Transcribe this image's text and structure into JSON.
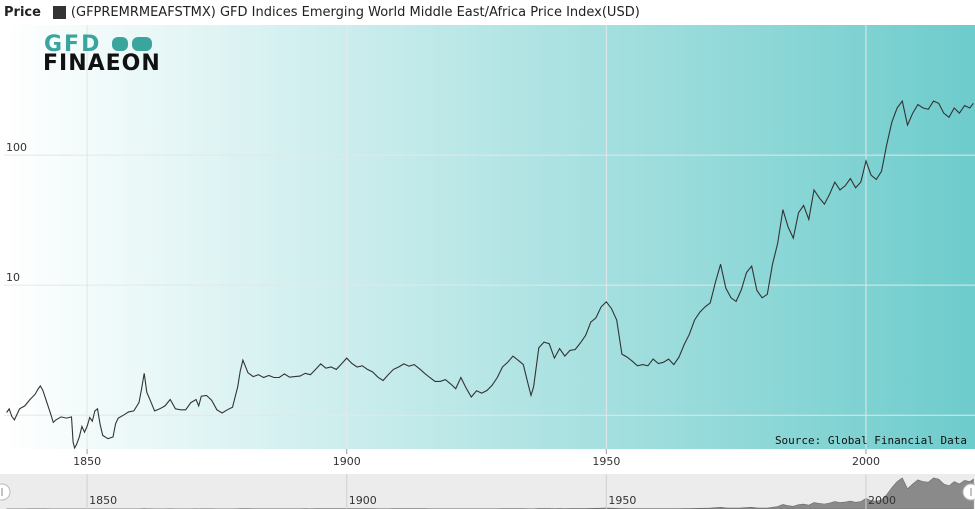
{
  "legend": {
    "price_label": "Price",
    "series_label": "(GFPREMRMEAFSTMX) GFD Indices Emerging World Middle East/Africa Price Index(USD)",
    "series_color": "#333333"
  },
  "logo": {
    "line1": "GFD",
    "line2": "FINAEON"
  },
  "source": "Source: Global Financial Data",
  "colors": {
    "gradient_start": "#ffffff",
    "gradient_end": "#6ecccc",
    "line": "#333333",
    "grid": "#e6e6e6"
  },
  "chart_data": {
    "type": "line",
    "title": "(GFPREMRMEAFSTMX) GFD Indices Emerging World Middle East/Africa Price Index(USD)",
    "xlabel": "",
    "ylabel": "Price",
    "y_scale": "log",
    "xlim": [
      1834,
      2021
    ],
    "ylim": [
      0.55,
      1000
    ],
    "grid": true,
    "x_ticks": [
      1850,
      1900,
      1950,
      2000
    ],
    "y_ticks": [
      1,
      10,
      100
    ],
    "y_tick_labels": [
      "",
      "10",
      "100"
    ],
    "x_tick_labels": [
      "1850",
      "1900",
      "1950",
      "2000"
    ],
    "navigator_x_labels": [
      "1850",
      "1900",
      "1950",
      "2000"
    ],
    "series": [
      {
        "values": [
          [
            1834.5,
            1.05
          ],
          [
            1835,
            1.12
          ],
          [
            1835.5,
            0.98
          ],
          [
            1836,
            0.92
          ],
          [
            1837,
            1.12
          ],
          [
            1838,
            1.18
          ],
          [
            1839,
            1.32
          ],
          [
            1840,
            1.45
          ],
          [
            1840.5,
            1.58
          ],
          [
            1841,
            1.68
          ],
          [
            1841.5,
            1.55
          ],
          [
            1842,
            1.35
          ],
          [
            1843,
            1.02
          ],
          [
            1843.5,
            0.88
          ],
          [
            1844,
            0.92
          ],
          [
            1845,
            0.97
          ],
          [
            1846,
            0.95
          ],
          [
            1847,
            0.97
          ],
          [
            1847.3,
            0.62
          ],
          [
            1847.6,
            0.56
          ],
          [
            1848,
            0.6
          ],
          [
            1848.5,
            0.68
          ],
          [
            1849,
            0.82
          ],
          [
            1849.5,
            0.74
          ],
          [
            1850,
            0.82
          ],
          [
            1850.5,
            0.96
          ],
          [
            1851,
            0.9
          ],
          [
            1851.5,
            1.08
          ],
          [
            1852,
            1.12
          ],
          [
            1852.5,
            0.85
          ],
          [
            1853,
            0.7
          ],
          [
            1854,
            0.66
          ],
          [
            1855,
            0.68
          ],
          [
            1855.5,
            0.86
          ],
          [
            1856,
            0.95
          ],
          [
            1857,
            1.0
          ],
          [
            1858,
            1.06
          ],
          [
            1859,
            1.08
          ],
          [
            1860,
            1.25
          ],
          [
            1860.5,
            1.6
          ],
          [
            1861,
            2.1
          ],
          [
            1861.5,
            1.5
          ],
          [
            1862,
            1.35
          ],
          [
            1863,
            1.08
          ],
          [
            1864,
            1.12
          ],
          [
            1865,
            1.18
          ],
          [
            1866,
            1.32
          ],
          [
            1867,
            1.12
          ],
          [
            1868,
            1.1
          ],
          [
            1869,
            1.1
          ],
          [
            1870,
            1.25
          ],
          [
            1871,
            1.32
          ],
          [
            1871.5,
            1.18
          ],
          [
            1872,
            1.4
          ],
          [
            1873,
            1.42
          ],
          [
            1874,
            1.3
          ],
          [
            1875,
            1.1
          ],
          [
            1876,
            1.04
          ],
          [
            1877,
            1.1
          ],
          [
            1878,
            1.15
          ],
          [
            1879,
            1.65
          ],
          [
            1879.5,
            2.2
          ],
          [
            1880,
            2.65
          ],
          [
            1881,
            2.12
          ],
          [
            1882,
            1.98
          ],
          [
            1883,
            2.05
          ],
          [
            1884,
            1.95
          ],
          [
            1885,
            2.02
          ],
          [
            1886,
            1.95
          ],
          [
            1887,
            1.95
          ],
          [
            1888,
            2.08
          ],
          [
            1889,
            1.96
          ],
          [
            1890,
            1.98
          ],
          [
            1891,
            2.0
          ],
          [
            1892,
            2.1
          ],
          [
            1893,
            2.05
          ],
          [
            1894,
            2.25
          ],
          [
            1895,
            2.48
          ],
          [
            1896,
            2.3
          ],
          [
            1897,
            2.35
          ],
          [
            1898,
            2.25
          ],
          [
            1899,
            2.48
          ],
          [
            1900,
            2.75
          ],
          [
            1901,
            2.5
          ],
          [
            1902,
            2.35
          ],
          [
            1903,
            2.4
          ],
          [
            1904,
            2.25
          ],
          [
            1905,
            2.15
          ],
          [
            1906,
            1.96
          ],
          [
            1907,
            1.85
          ],
          [
            1908,
            2.05
          ],
          [
            1909,
            2.25
          ],
          [
            1910,
            2.35
          ],
          [
            1911,
            2.48
          ],
          [
            1912,
            2.38
          ],
          [
            1913,
            2.45
          ],
          [
            1914,
            2.28
          ],
          [
            1915,
            2.1
          ],
          [
            1916,
            1.95
          ],
          [
            1917,
            1.82
          ],
          [
            1918,
            1.82
          ],
          [
            1919,
            1.88
          ],
          [
            1920,
            1.74
          ],
          [
            1921,
            1.6
          ],
          [
            1922,
            1.95
          ],
          [
            1923,
            1.62
          ],
          [
            1924,
            1.38
          ],
          [
            1925,
            1.54
          ],
          [
            1926,
            1.48
          ],
          [
            1927,
            1.55
          ],
          [
            1928,
            1.7
          ],
          [
            1929,
            1.95
          ],
          [
            1930,
            2.35
          ],
          [
            1931,
            2.55
          ],
          [
            1932,
            2.85
          ],
          [
            1933,
            2.65
          ],
          [
            1934,
            2.45
          ],
          [
            1935,
            1.7
          ],
          [
            1935.5,
            1.42
          ],
          [
            1936,
            1.65
          ],
          [
            1937,
            3.3
          ],
          [
            1938,
            3.65
          ],
          [
            1939,
            3.55
          ],
          [
            1940,
            2.75
          ],
          [
            1941,
            3.25
          ],
          [
            1942,
            2.85
          ],
          [
            1943,
            3.15
          ],
          [
            1944,
            3.2
          ],
          [
            1945,
            3.6
          ],
          [
            1946,
            4.1
          ],
          [
            1947,
            5.2
          ],
          [
            1948,
            5.6
          ],
          [
            1949,
            6.8
          ],
          [
            1950,
            7.45
          ],
          [
            1951,
            6.6
          ],
          [
            1952,
            5.4
          ],
          [
            1953,
            2.95
          ],
          [
            1954,
            2.8
          ],
          [
            1955,
            2.6
          ],
          [
            1956,
            2.4
          ],
          [
            1957,
            2.45
          ],
          [
            1958,
            2.4
          ],
          [
            1959,
            2.7
          ],
          [
            1960,
            2.5
          ],
          [
            1961,
            2.55
          ],
          [
            1962,
            2.7
          ],
          [
            1963,
            2.45
          ],
          [
            1964,
            2.8
          ],
          [
            1965,
            3.5
          ],
          [
            1966,
            4.2
          ],
          [
            1967,
            5.4
          ],
          [
            1968,
            6.2
          ],
          [
            1969,
            6.8
          ],
          [
            1970,
            7.3
          ],
          [
            1971,
            10.5
          ],
          [
            1972,
            14.5
          ],
          [
            1973,
            9.5
          ],
          [
            1974,
            8.0
          ],
          [
            1975,
            7.5
          ],
          [
            1976,
            9.2
          ],
          [
            1977,
            12.5
          ],
          [
            1978,
            14.0
          ],
          [
            1979,
            9.1
          ],
          [
            1980,
            8.0
          ],
          [
            1981,
            8.5
          ],
          [
            1982,
            14.5
          ],
          [
            1983,
            21.0
          ],
          [
            1984,
            38.0
          ],
          [
            1985,
            28.0
          ],
          [
            1986,
            23.0
          ],
          [
            1987,
            36.0
          ],
          [
            1988,
            41.0
          ],
          [
            1989,
            32.0
          ],
          [
            1990,
            54.0
          ],
          [
            1991,
            47.0
          ],
          [
            1992,
            42.0
          ],
          [
            1993,
            50.0
          ],
          [
            1994,
            62.0
          ],
          [
            1995,
            54.0
          ],
          [
            1996,
            58.0
          ],
          [
            1997,
            66.0
          ],
          [
            1998,
            56.0
          ],
          [
            1999,
            62.0
          ],
          [
            2000,
            90.0
          ],
          [
            2001,
            70.0
          ],
          [
            2002,
            65.0
          ],
          [
            2003,
            75.0
          ],
          [
            2004,
            120
          ],
          [
            2005,
            180
          ],
          [
            2006,
            230
          ],
          [
            2007,
            260
          ],
          [
            2008,
            170
          ],
          [
            2009,
            210
          ],
          [
            2010,
            245
          ],
          [
            2011,
            230
          ],
          [
            2012,
            225
          ],
          [
            2013,
            260
          ],
          [
            2014,
            250
          ],
          [
            2015,
            210
          ],
          [
            2016,
            195
          ],
          [
            2017,
            230
          ],
          [
            2018,
            210
          ],
          [
            2019,
            240
          ],
          [
            2020,
            230
          ],
          [
            2020.7,
            250
          ]
        ]
      }
    ]
  }
}
